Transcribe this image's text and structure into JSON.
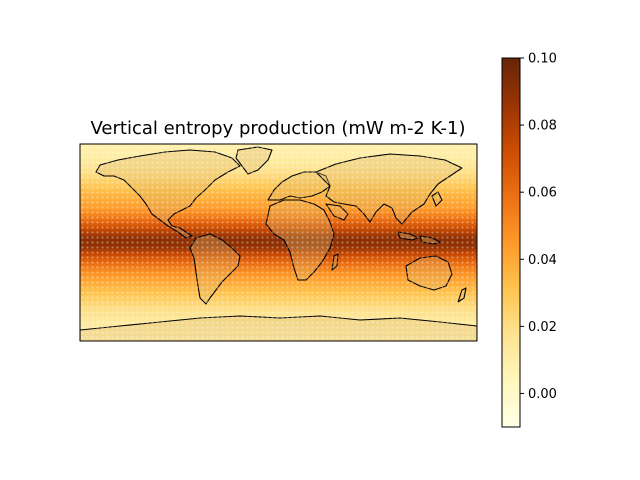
{
  "chart_data": {
    "type": "heatmap",
    "title": "Vertical entropy production (mW m-2 K-1)",
    "projection": "PlateCarree",
    "extent": {
      "lon": [
        -180,
        180
      ],
      "lat": [
        -90,
        90
      ]
    },
    "colormap": "YlOrBr",
    "colorbar": {
      "orientation": "vertical",
      "placement": "right",
      "vmin": -0.01,
      "vmax": 0.1,
      "ticks": [
        0.0,
        0.02,
        0.04,
        0.06,
        0.08,
        0.1
      ],
      "tick_labels": [
        "0.00",
        "0.02",
        "0.04",
        "0.06",
        "0.08",
        "0.10"
      ]
    },
    "zonal_profile": {
      "lat": [
        -90,
        -75,
        -60,
        -45,
        -30,
        -20,
        -10,
        -5,
        0,
        5,
        10,
        20,
        30,
        45,
        60,
        75,
        90
      ],
      "values": [
        0.008,
        0.012,
        0.02,
        0.032,
        0.045,
        0.058,
        0.075,
        0.086,
        0.09,
        0.088,
        0.078,
        0.06,
        0.045,
        0.035,
        0.022,
        0.012,
        0.008
      ]
    },
    "coastlines": true,
    "stippling": true
  },
  "colors": {
    "colormap_stops": [
      "#ffffe5",
      "#fff7bc",
      "#fee391",
      "#fec44f",
      "#fe9929",
      "#ec7014",
      "#cc4c02",
      "#993404",
      "#662506"
    ],
    "coastline": "#000000"
  }
}
